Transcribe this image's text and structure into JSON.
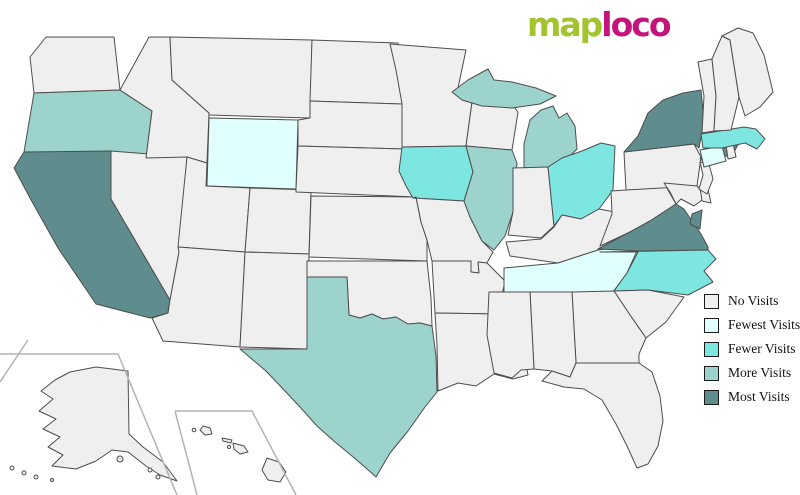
{
  "logo": {
    "text_map": "map",
    "text_loco": "loco",
    "color_map": "#A3C42F",
    "color_loco": "#C4137B"
  },
  "legend": {
    "items": [
      {
        "id": "no",
        "label": "No Visits",
        "color": "#EFEFEF"
      },
      {
        "id": "fewest",
        "label": "Fewest Visits",
        "color": "#E0FFFF"
      },
      {
        "id": "fewer",
        "label": "Fewer Visits",
        "color": "#7EE6E1"
      },
      {
        "id": "more",
        "label": "More Visits",
        "color": "#9CD3CD"
      },
      {
        "id": "most",
        "label": "Most Visits",
        "color": "#5F8D8E"
      }
    ]
  },
  "map": {
    "stroke_color": "#4d4d4d",
    "inset_frame_color": "#b3b3b3",
    "state_levels": {
      "WA": "no",
      "OR": "more",
      "CA": "most",
      "NV": "no",
      "ID": "no",
      "MT": "no",
      "WY": "fewest",
      "UT": "no",
      "CO": "no",
      "AZ": "no",
      "NM": "no",
      "ND": "no",
      "SD": "no",
      "NE": "no",
      "KS": "no",
      "OK": "no",
      "TX": "more",
      "MN": "no",
      "IA": "fewer",
      "MO": "no",
      "AR": "no",
      "LA": "no",
      "WI": "no",
      "IL": "more",
      "MI": "more",
      "IN": "no",
      "OH": "fewer",
      "KY": "no",
      "TN": "fewest",
      "MS": "no",
      "AL": "no",
      "GA": "no",
      "FL": "no",
      "SC": "no",
      "NC": "fewer",
      "VA": "most",
      "WV": "no",
      "MD": "no",
      "DE": "no",
      "NJ": "no",
      "PA": "no",
      "NY": "most",
      "CT": "fewest",
      "RI": "no",
      "MA": "fewer",
      "VT": "no",
      "NH": "no",
      "ME": "no",
      "AK": "no",
      "HI": "no"
    },
    "state_names": {
      "WA": "Washington",
      "OR": "Oregon",
      "CA": "California",
      "NV": "Nevada",
      "ID": "Idaho",
      "MT": "Montana",
      "WY": "Wyoming",
      "UT": "Utah",
      "CO": "Colorado",
      "AZ": "Arizona",
      "NM": "New Mexico",
      "ND": "North Dakota",
      "SD": "South Dakota",
      "NE": "Nebraska",
      "KS": "Kansas",
      "OK": "Oklahoma",
      "TX": "Texas",
      "MN": "Minnesota",
      "IA": "Iowa",
      "MO": "Missouri",
      "AR": "Arkansas",
      "LA": "Louisiana",
      "WI": "Wisconsin",
      "IL": "Illinois",
      "MI": "Michigan",
      "IN": "Indiana",
      "OH": "Ohio",
      "KY": "Kentucky",
      "TN": "Tennessee",
      "MS": "Mississippi",
      "AL": "Alabama",
      "GA": "Georgia",
      "FL": "Florida",
      "SC": "South Carolina",
      "NC": "North Carolina",
      "VA": "Virginia",
      "WV": "West Virginia",
      "MD": "Maryland",
      "DE": "Delaware",
      "NJ": "New Jersey",
      "PA": "Pennsylvania",
      "NY": "New York",
      "CT": "Connecticut",
      "RI": "Rhode Island",
      "MA": "Massachusetts",
      "VT": "Vermont",
      "NH": "New Hampshire",
      "ME": "Maine",
      "AK": "Alaska",
      "HI": "Hawaii"
    }
  }
}
